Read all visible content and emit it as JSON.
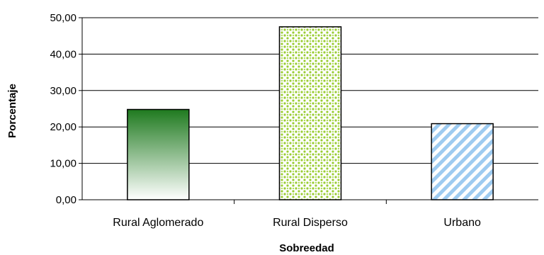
{
  "chart_data": {
    "type": "bar",
    "categories": [
      "Rural Aglomerado",
      "Rural Disperso",
      "Urbano"
    ],
    "values": [
      24.8,
      47.5,
      20.9
    ],
    "xlabel": "Sobreedad",
    "ylabel": "Porcentaje",
    "ylim": [
      0,
      50
    ],
    "yticks": [
      "0,00",
      "10,00",
      "20,00",
      "30,00",
      "40,00",
      "50,00"
    ],
    "grid": true,
    "legend": "none",
    "fills": [
      {
        "style": "gradient",
        "top": "#1f7a1f",
        "bottom": "#ffffff"
      },
      {
        "style": "dots",
        "base": "#ffffff",
        "dot": "#9acd32"
      },
      {
        "style": "diagonal-stripes",
        "base": "#ffffff",
        "stripe": "#9ecbf0"
      }
    ],
    "colors": {
      "axis": "#000000",
      "grid": "#000000",
      "bar_outline": "#000000"
    }
  }
}
